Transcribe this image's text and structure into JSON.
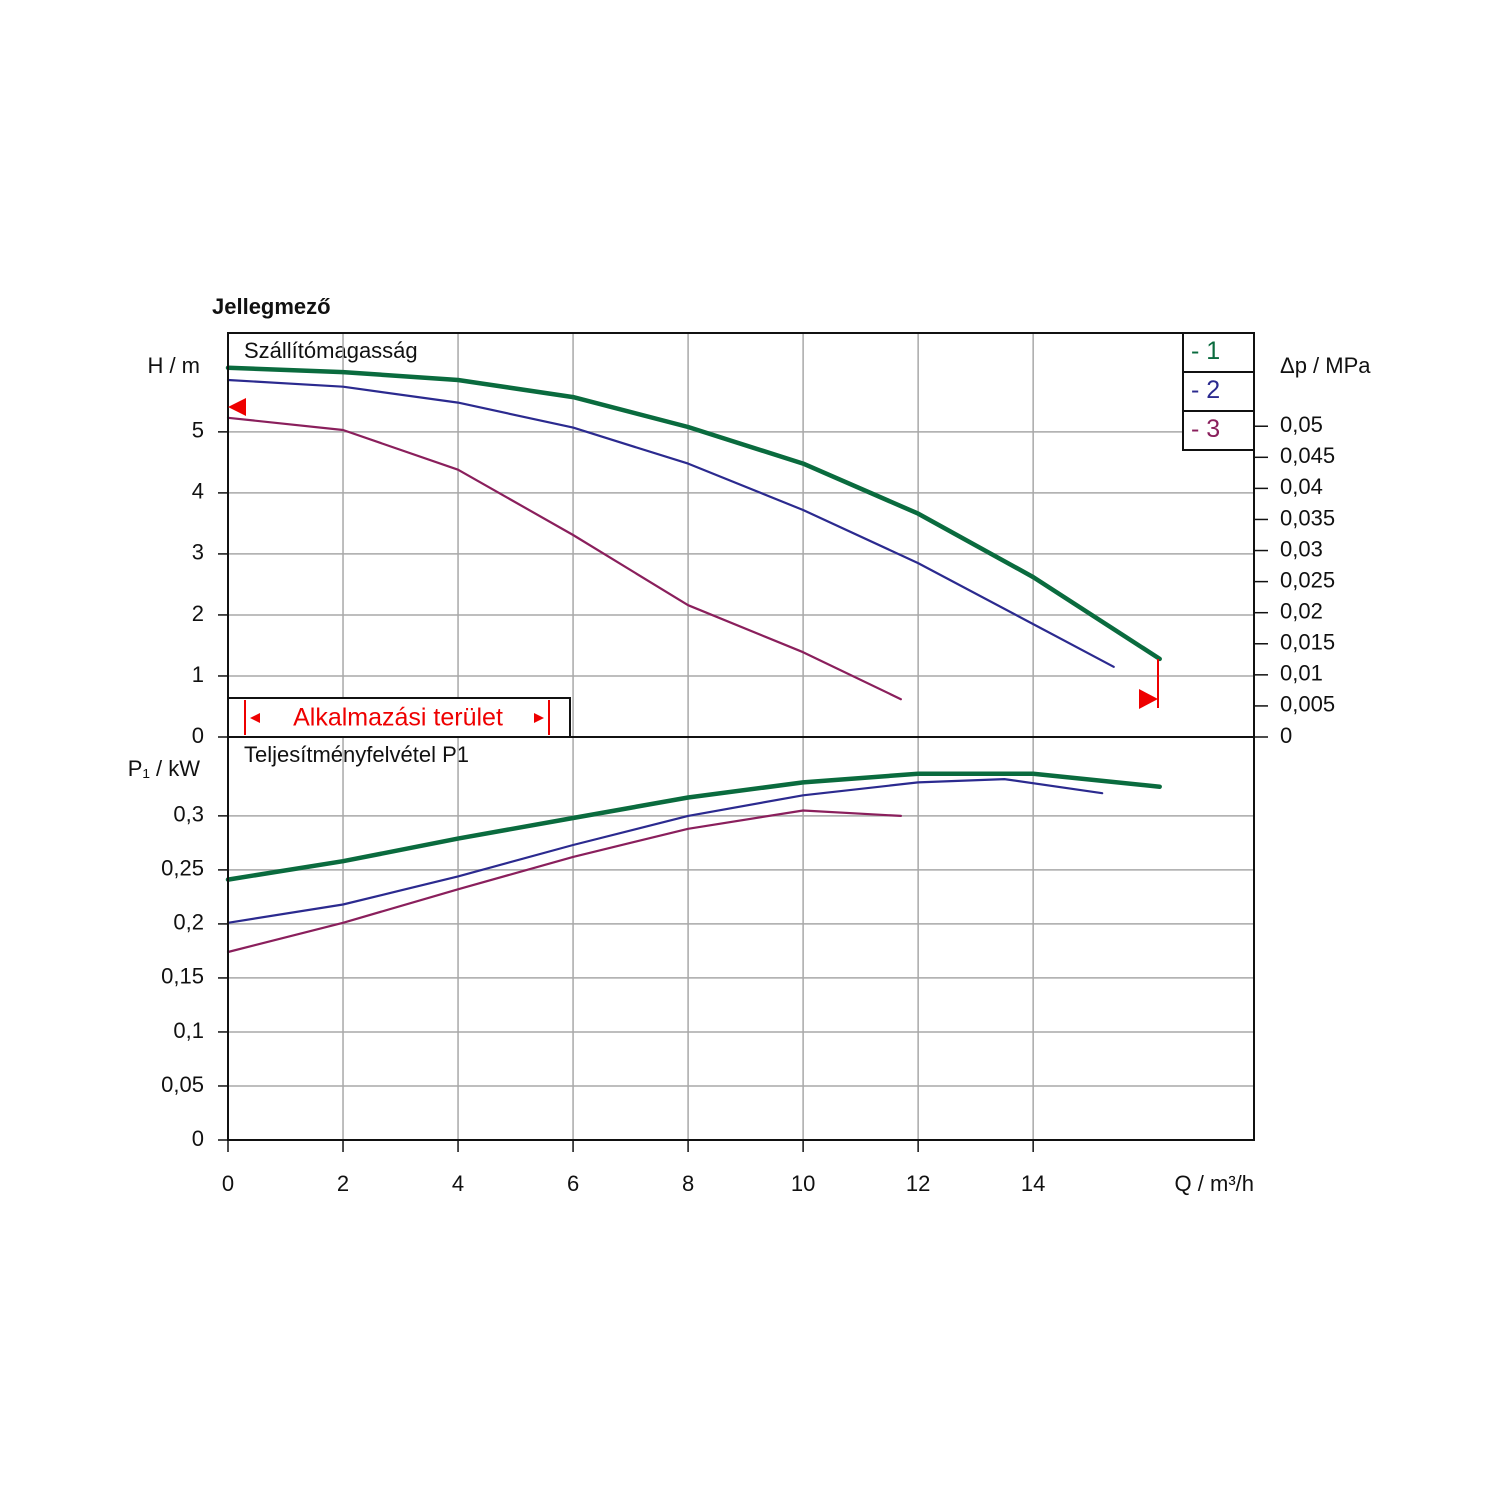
{
  "chart_data": [
    {
      "type": "line",
      "title": "Jellegmező",
      "subtitle": "Szállítómagasság",
      "ylabel": "H / m",
      "y2label": "Δp / MPa",
      "annotation": "Alkalmazási terület",
      "xlim": [
        0,
        17.84
      ],
      "ylim": [
        0,
        6.62
      ],
      "yticks": [
        0,
        1,
        2,
        3,
        4,
        5
      ],
      "y2lim": [
        0,
        0.065
      ],
      "y2ticks": [
        0,
        {
          "value": 0.005,
          "label": "0,005"
        },
        {
          "value": 0.01,
          "label": "0,01"
        },
        {
          "value": 0.015,
          "label": "0,015"
        },
        {
          "value": 0.02,
          "label": "0,02"
        },
        {
          "value": 0.025,
          "label": "0,025"
        },
        {
          "value": 0.03,
          "label": "0,03"
        },
        {
          "value": 0.035,
          "label": "0,035"
        },
        {
          "value": 0.04,
          "label": "0,04"
        },
        {
          "value": 0.045,
          "label": "0,045"
        },
        {
          "value": 0.05,
          "label": "0,05"
        }
      ],
      "grid": true,
      "legend": "upper right",
      "series": [
        {
          "name": "- 1",
          "color": "#0a6b3e",
          "x": [
            0,
            2,
            4,
            6,
            8,
            10,
            12,
            14,
            16.2
          ],
          "values": [
            6.05,
            5.98,
            5.85,
            5.57,
            5.08,
            4.48,
            3.66,
            2.62,
            1.28
          ]
        },
        {
          "name": "- 2",
          "color": "#2b2a8f",
          "x": [
            0,
            2,
            4,
            6,
            8,
            10,
            12,
            14,
            15.4
          ],
          "values": [
            5.85,
            5.74,
            5.48,
            5.07,
            4.48,
            3.72,
            2.85,
            1.85,
            1.15
          ]
        },
        {
          "name": "- 3",
          "color": "#8a1f5c",
          "x": [
            0,
            2,
            4,
            6,
            8,
            10,
            11.7
          ],
          "values": [
            5.23,
            5.03,
            4.38,
            3.31,
            2.16,
            1.39,
            0.62
          ]
        }
      ]
    },
    {
      "type": "line",
      "subtitle": "Teljesítményfelvétel P1",
      "ylabel": "P₁ / kW",
      "xlabel": "Q / m³/h",
      "xlim": [
        0,
        17.84
      ],
      "xticks": [
        0,
        2,
        4,
        6,
        8,
        10,
        12,
        14
      ],
      "ylim": [
        0,
        0.373
      ],
      "yticks": [
        0,
        {
          "value": 0.05,
          "label": "0,05"
        },
        {
          "value": 0.1,
          "label": "0,1"
        },
        {
          "value": 0.15,
          "label": "0,15"
        },
        {
          "value": 0.2,
          "label": "0,2"
        },
        {
          "value": 0.25,
          "label": "0,25"
        },
        {
          "value": 0.3,
          "label": "0,3"
        }
      ],
      "grid": true,
      "series": [
        {
          "color": "#0a6b3e",
          "x": [
            0,
            2,
            4,
            6,
            8,
            10,
            12,
            14,
            16.2
          ],
          "values": [
            0.241,
            0.258,
            0.279,
            0.298,
            0.317,
            0.331,
            0.339,
            0.339,
            0.327
          ]
        },
        {
          "color": "#2b2a8f",
          "x": [
            0,
            2,
            4,
            6,
            8,
            10,
            12,
            13.5,
            15.2
          ],
          "values": [
            0.201,
            0.218,
            0.244,
            0.273,
            0.3,
            0.319,
            0.331,
            0.334,
            0.321
          ]
        },
        {
          "color": "#8a1f5c",
          "x": [
            0,
            2,
            4,
            6,
            8,
            10,
            11.7
          ],
          "values": [
            0.174,
            0.201,
            0.232,
            0.262,
            0.288,
            0.305,
            0.3
          ]
        }
      ]
    }
  ]
}
